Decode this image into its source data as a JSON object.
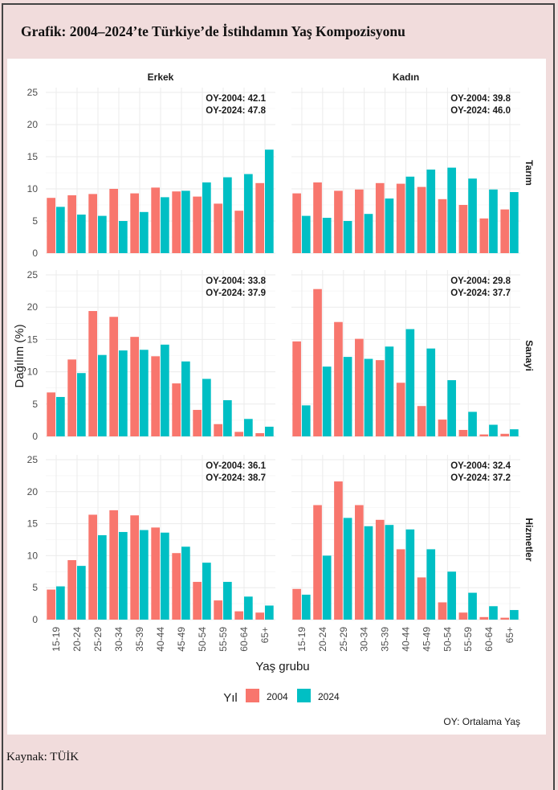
{
  "title": "Grafik: 2004–2024’te Türkiye’de İstihdamın Yaş Kompozisyonu",
  "source": "Kaynak: TÜİK",
  "chart_data": {
    "type": "bar",
    "layout": "facet-grid",
    "xlabel": "Yaş grubu",
    "ylabel": "Dağılım (%)",
    "ylim": [
      0,
      25
    ],
    "yticks": [
      0,
      5,
      10,
      15,
      20,
      25
    ],
    "grid": true,
    "categories": [
      "15-19",
      "20-24",
      "25-29",
      "30-34",
      "35-39",
      "40-44",
      "45-49",
      "50-54",
      "55-59",
      "60-64",
      "65+"
    ],
    "columns": [
      "Erkek",
      "Kadın"
    ],
    "rows": [
      "Tarım",
      "Sanayi",
      "Hizmetler"
    ],
    "legend": {
      "title": "Yıl",
      "position": "bottom",
      "entries": [
        {
          "name": "2004",
          "color": "#f8766d"
        },
        {
          "name": "2024",
          "color": "#00bfc4"
        }
      ]
    },
    "note": "OY: Ortalama Yaş",
    "panels": [
      {
        "row": "Tarım",
        "column": "Erkek",
        "oy_labels": [
          "OY-2004: 42.1",
          "OY-2024: 47.8"
        ],
        "series": [
          {
            "name": "2004",
            "values": [
              8.6,
              9.0,
              9.2,
              10.0,
              9.3,
              10.2,
              9.6,
              8.8,
              7.7,
              6.6,
              10.9
            ]
          },
          {
            "name": "2024",
            "values": [
              7.2,
              6.0,
              5.8,
              5.0,
              6.4,
              8.7,
              9.7,
              11.0,
              11.8,
              12.3,
              16.1
            ]
          }
        ]
      },
      {
        "row": "Tarım",
        "column": "Kadın",
        "oy_labels": [
          "OY-2004: 39.8",
          "OY-2024: 46.0"
        ],
        "series": [
          {
            "name": "2004",
            "values": [
              9.3,
              11.0,
              9.7,
              9.9,
              10.9,
              10.8,
              10.3,
              8.4,
              7.5,
              5.4,
              6.8
            ]
          },
          {
            "name": "2024",
            "values": [
              5.8,
              5.5,
              5.0,
              6.1,
              8.5,
              11.9,
              13.0,
              13.3,
              11.6,
              9.9,
              9.5
            ]
          }
        ]
      },
      {
        "row": "Sanayi",
        "column": "Erkek",
        "oy_labels": [
          "OY-2004: 33.8",
          "OY-2024: 37.9"
        ],
        "series": [
          {
            "name": "2004",
            "values": [
              6.8,
              11.9,
              19.4,
              18.5,
              15.4,
              12.4,
              8.2,
              4.1,
              1.9,
              0.7,
              0.5
            ]
          },
          {
            "name": "2024",
            "values": [
              6.1,
              9.8,
              12.6,
              13.3,
              13.4,
              14.2,
              11.6,
              8.9,
              5.6,
              2.7,
              1.5
            ]
          }
        ]
      },
      {
        "row": "Sanayi",
        "column": "Kadın",
        "oy_labels": [
          "OY-2004: 29.8",
          "OY-2024: 37.7"
        ],
        "series": [
          {
            "name": "2004",
            "values": [
              14.7,
              22.8,
              17.7,
              15.1,
              11.8,
              8.3,
              4.7,
              2.6,
              1.0,
              0.3,
              0.4
            ]
          },
          {
            "name": "2024",
            "values": [
              4.8,
              10.8,
              12.3,
              12.0,
              13.9,
              16.6,
              13.6,
              8.7,
              3.8,
              1.8,
              1.1
            ]
          }
        ]
      },
      {
        "row": "Hizmetler",
        "column": "Erkek",
        "oy_labels": [
          "OY-2004: 36.1",
          "OY-2024: 38.7"
        ],
        "series": [
          {
            "name": "2004",
            "values": [
              4.7,
              9.3,
              16.4,
              17.1,
              16.3,
              14.4,
              10.4,
              5.9,
              3.0,
              1.3,
              1.1
            ]
          },
          {
            "name": "2024",
            "values": [
              5.2,
              8.4,
              13.2,
              13.7,
              14.0,
              13.6,
              11.4,
              8.9,
              5.9,
              3.6,
              2.2
            ]
          }
        ]
      },
      {
        "row": "Hizmetler",
        "column": "Kadın",
        "oy_labels": [
          "OY-2004: 32.4",
          "OY-2024: 37.2"
        ],
        "series": [
          {
            "name": "2004",
            "values": [
              4.8,
              17.9,
              21.6,
              17.9,
              15.6,
              11.0,
              6.6,
              2.7,
              1.1,
              0.4,
              0.3
            ]
          },
          {
            "name": "2024",
            "values": [
              3.9,
              10.0,
              15.9,
              14.6,
              14.8,
              14.1,
              11.0,
              7.5,
              4.2,
              2.1,
              1.5
            ]
          }
        ]
      }
    ]
  }
}
